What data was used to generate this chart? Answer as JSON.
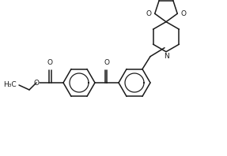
{
  "bg_color": "#ffffff",
  "line_color": "#1a1a1a",
  "line_width": 1.1,
  "font_size": 6.5,
  "figsize": [
    2.87,
    1.98
  ],
  "dpi": 100,
  "xlim": [
    0,
    287
  ],
  "ylim": [
    0,
    198
  ]
}
